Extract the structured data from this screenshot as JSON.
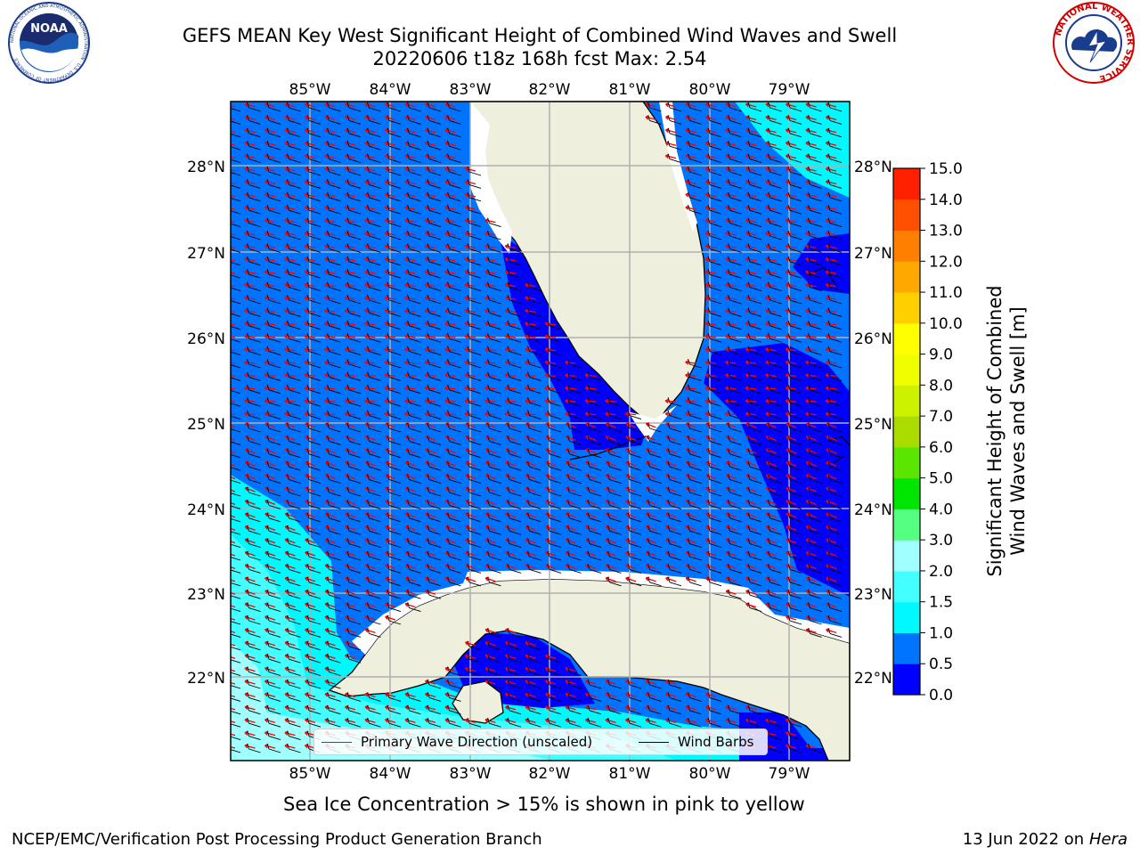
{
  "header": {
    "title_line1": "GEFS MEAN Key West Significant Height of Combined Wind Waves and Swell",
    "title_line2": "20220606 t18z 168h fcst   Max: 2.54"
  },
  "logos": {
    "left": {
      "name": "noaa-logo",
      "text": "NOAA",
      "ring_text": "NATIONAL OCEANIC AND ATMOSPHERIC ADMINISTRATION · U.S. DEPARTMENT OF COMMERCE"
    },
    "right": {
      "name": "nws-logo",
      "ring_text": "NATIONAL WEATHER SERVICE"
    }
  },
  "map": {
    "lon_labels": [
      "85°W",
      "84°W",
      "83°W",
      "82°W",
      "81°W",
      "80°W",
      "79°W"
    ],
    "lat_labels": [
      "28°N",
      "27°N",
      "26°N",
      "25°N",
      "24°N",
      "23°N",
      "22°N"
    ],
    "colors": {
      "land": "#efefdd",
      "coast": "#000000",
      "grid": "#b0b0b0",
      "wave_arrow": "#ff0000",
      "wind_barb": "#000000"
    }
  },
  "colorbar": {
    "title_line1": "Significant Height of Combined",
    "title_line2": "Wind Waves and Swell [m]",
    "tick_labels": [
      "0.0",
      "0.5",
      "1.0",
      "1.5",
      "2.0",
      "3.0",
      "4.0",
      "5.0",
      "6.0",
      "7.0",
      "8.0",
      "9.0",
      "10.0",
      "11.0",
      "12.0",
      "13.0",
      "14.0",
      "15.0"
    ],
    "bin_colors": [
      "#0000ff",
      "#0073ff",
      "#00f8ff",
      "#44ffff",
      "#a0ffff",
      "#55ff7f",
      "#00e600",
      "#5ae600",
      "#aadc00",
      "#ccf200",
      "#f0ff00",
      "#ffff00",
      "#ffd000",
      "#ffa800",
      "#ff8000",
      "#ff5000",
      "#ff2000"
    ]
  },
  "legend": {
    "wave_label": "Primary Wave Direction (unscaled)",
    "wind_label": "Wind Barbs"
  },
  "footer": {
    "sea_ice_note": "Sea Ice Concentration > 15% is shown in pink to yellow",
    "credit": "NCEP/EMC/Verification Post Processing Product Generation Branch",
    "date": "13 Jun 2022 on",
    "machine": "Hera"
  }
}
